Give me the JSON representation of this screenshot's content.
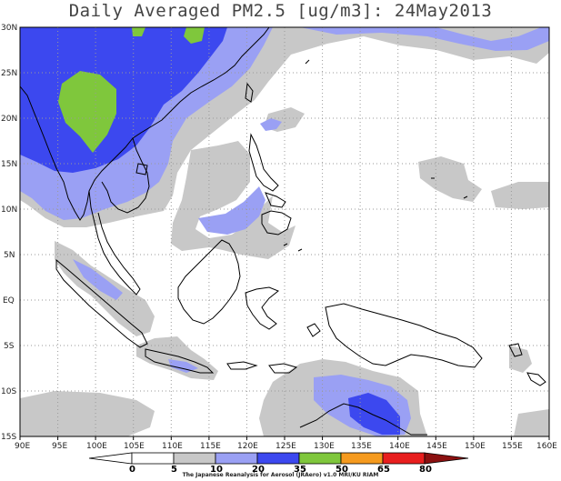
{
  "title": "Daily Averaged PM2.5 [ug/m3]: 24May2013",
  "credit": "The Japanese Reanalysis for Aerosol (JRAero) v1.0 MRI/KU RIAM",
  "lon_labels": [
    "90E",
    "95E",
    "100E",
    "105E",
    "110E",
    "115E",
    "120E",
    "125E",
    "130E",
    "135E",
    "140E",
    "145E",
    "150E",
    "155E",
    "160E"
  ],
  "lat_labels": [
    "30N",
    "25N",
    "20N",
    "15N",
    "10N",
    "5N",
    "EQ",
    "5S",
    "10S",
    "15S"
  ],
  "colorbar": {
    "labels": [
      "0",
      "5",
      "10",
      "20",
      "35",
      "50",
      "65",
      "80"
    ],
    "colors": [
      "#ffffff",
      "#ffffff",
      "#c8c8c8",
      "#9aa0f4",
      "#3c48ef",
      "#7fc73c",
      "#f59a1e",
      "#e81e1e",
      "#8b1010"
    ]
  },
  "colors": {
    "frame": "#000000",
    "grid": "#9a9a9a",
    "coast": "#000000"
  }
}
